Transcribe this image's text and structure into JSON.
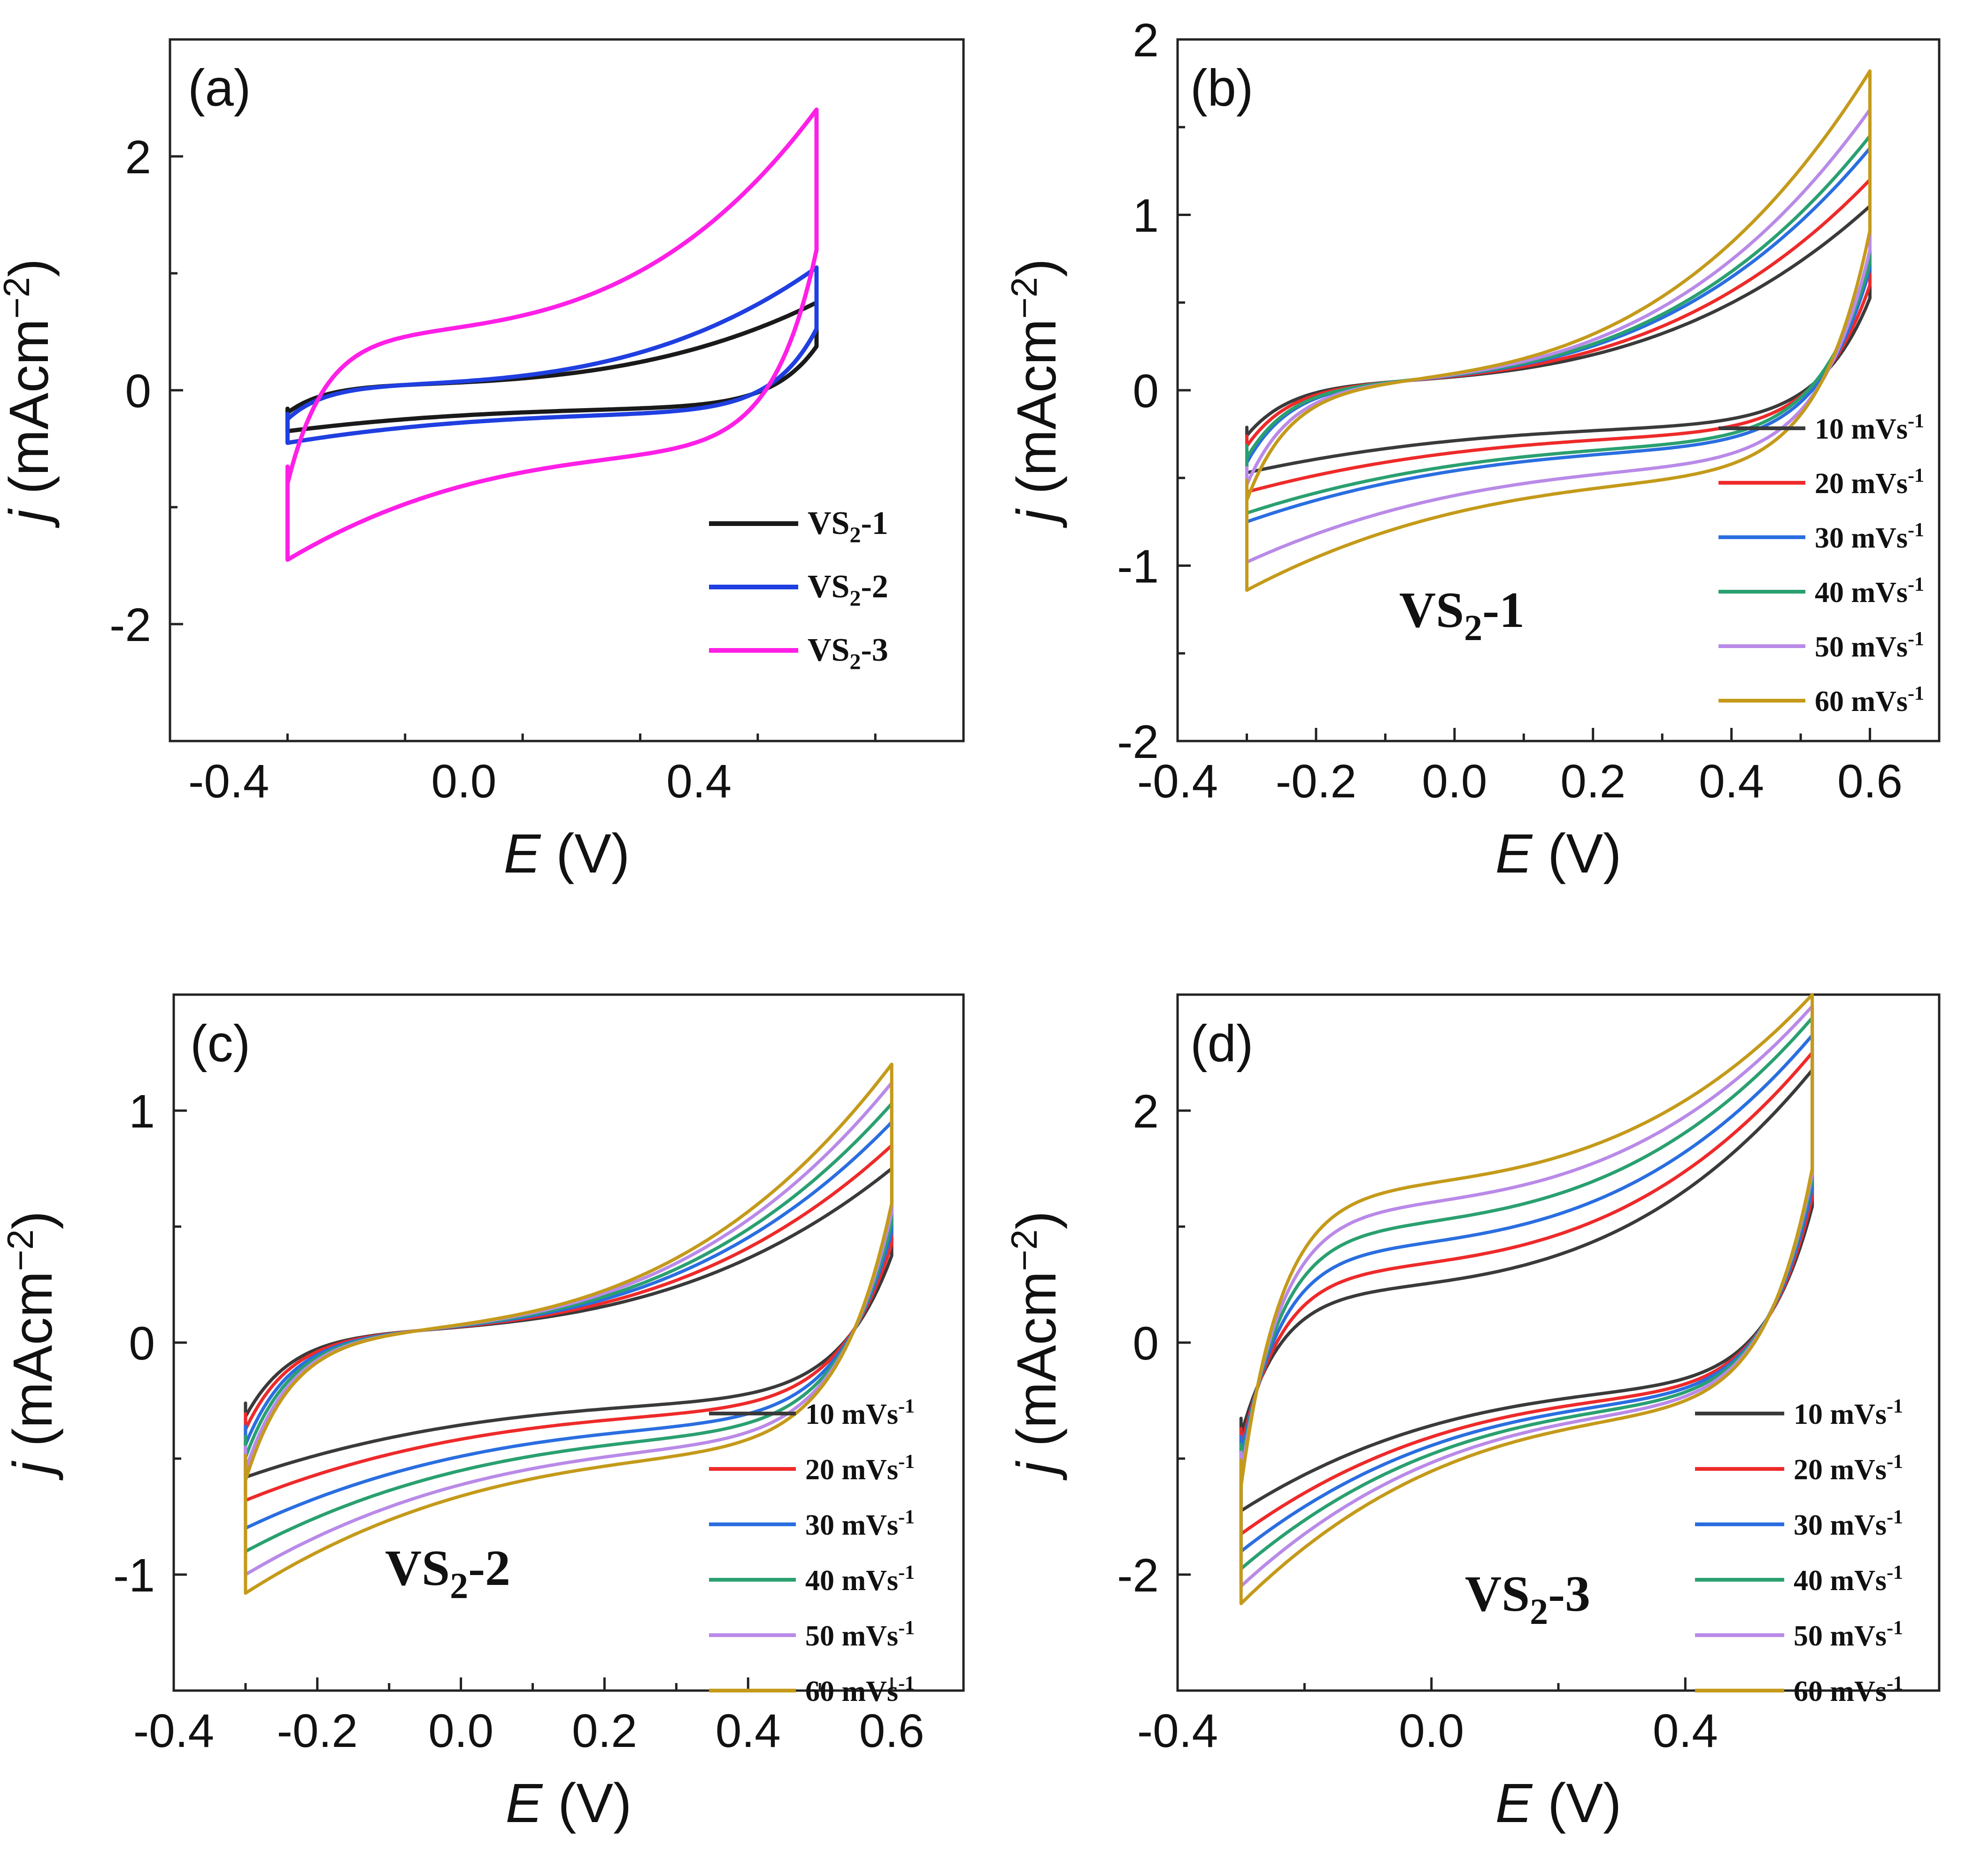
{
  "chart_data": [
    {
      "panel": "(a)",
      "type": "line",
      "title": "",
      "xlabel": "E (V)",
      "xlabel_italic": "E",
      "xlabel_rest": " (V)",
      "ylabel_italic": "j",
      "ylabel_rest": " (mAcm",
      "ylabel_exp": "−2",
      "ylabel_close": ")",
      "xlim": [
        -0.5,
        0.85
      ],
      "ylim": [
        -3,
        3
      ],
      "xticks": [
        -0.4,
        0.0,
        0.4
      ],
      "xtick_labels": [
        "-0.4",
        "0.0",
        "0.4"
      ],
      "yticks": [
        -2,
        0,
        2
      ],
      "ytick_labels": [
        "-2",
        "0",
        "2"
      ],
      "legend_position": "bottom-right",
      "sample_label": null,
      "series": [
        {
          "name": "VS2-1",
          "base": "VS",
          "sub": "2",
          "suffix": "-1",
          "color": "#1a1a1a",
          "E_min": -0.3,
          "E_max": 0.6,
          "j_min": -0.35,
          "j_max": 0.75
        },
        {
          "name": "VS2-2",
          "base": "VS",
          "sub": "2",
          "suffix": "-2",
          "color": "#1f3fe0",
          "E_min": -0.3,
          "E_max": 0.6,
          "j_min": -0.45,
          "j_max": 1.05
        },
        {
          "name": "VS2-3",
          "base": "VS",
          "sub": "2",
          "suffix": "-3",
          "color": "#ff1fe6",
          "E_min": -0.3,
          "E_max": 0.6,
          "j_min": -1.45,
          "j_max": 2.4
        }
      ]
    },
    {
      "panel": "(b)",
      "type": "line",
      "title": "",
      "xlabel": "E (V)",
      "xlabel_italic": "E",
      "xlabel_rest": " (V)",
      "ylabel_italic": "j",
      "ylabel_rest": " (mAcm",
      "ylabel_exp": "−2",
      "ylabel_close": ")",
      "xlim": [
        -0.4,
        0.7
      ],
      "ylim": [
        -2,
        2
      ],
      "xticks": [
        -0.4,
        -0.2,
        0.0,
        0.2,
        0.4,
        0.6
      ],
      "xtick_labels": [
        "-0.4",
        "-0.2",
        "0.0",
        "0.2",
        "0.4",
        "0.6"
      ],
      "yticks": [
        -2,
        -1,
        0,
        1,
        2
      ],
      "ytick_labels": [
        "-2",
        "-1",
        "0",
        "1",
        "2"
      ],
      "legend_position": "right",
      "sample_label": {
        "base": "VS",
        "sub": "2",
        "suffix": "-1"
      },
      "series": [
        {
          "name": "10 mVs-1",
          "label": "10 mVs",
          "exp": "-1",
          "color": "#3a3a3a",
          "E_min": -0.3,
          "E_max": 0.6,
          "j_min": -0.47,
          "j_max": 1.05
        },
        {
          "name": "20 mVs-1",
          "label": "20 mVs",
          "exp": "-1",
          "color": "#ee2a2a",
          "E_min": -0.3,
          "E_max": 0.6,
          "j_min": -0.58,
          "j_max": 1.2
        },
        {
          "name": "30 mVs-1",
          "label": "30 mVs",
          "exp": "-1",
          "color": "#2a6ee0",
          "E_min": -0.3,
          "E_max": 0.6,
          "j_min": -0.75,
          "j_max": 1.38
        },
        {
          "name": "40 mVs-1",
          "label": "40 mVs",
          "exp": "-1",
          "color": "#2aa070",
          "E_min": -0.3,
          "E_max": 0.6,
          "j_min": -0.7,
          "j_max": 1.45
        },
        {
          "name": "50 mVs-1",
          "label": "50 mVs",
          "exp": "-1",
          "color": "#b98ae8",
          "E_min": -0.3,
          "E_max": 0.6,
          "j_min": -0.98,
          "j_max": 1.6
        },
        {
          "name": "60 mVs-1",
          "label": "60 mVs",
          "exp": "-1",
          "color": "#c49a1a",
          "E_min": -0.3,
          "E_max": 0.6,
          "j_min": -1.14,
          "j_max": 1.82
        }
      ]
    },
    {
      "panel": "(c)",
      "type": "line",
      "title": "",
      "xlabel": "E (V)",
      "xlabel_italic": "E",
      "xlabel_rest": " (V)",
      "ylabel_italic": "j",
      "ylabel_rest": " (mAcm",
      "ylabel_exp": "−2",
      "ylabel_close": ")",
      "xlim": [
        -0.4,
        0.7
      ],
      "ylim": [
        -1.5,
        1.5
      ],
      "xticks": [
        -0.4,
        -0.2,
        0.0,
        0.2,
        0.4,
        0.6
      ],
      "xtick_labels": [
        "-0.4",
        "-0.2",
        "0.0",
        "0.2",
        "0.4",
        "0.6"
      ],
      "yticks": [
        -1,
        0,
        1
      ],
      "ytick_labels": [
        "-1",
        "0",
        "1"
      ],
      "legend_position": "bottom-right",
      "sample_label": {
        "base": "VS",
        "sub": "2",
        "suffix": "-2"
      },
      "series": [
        {
          "name": "10 mVs-1",
          "label": "10 mVs",
          "exp": "-1",
          "color": "#3a3a3a",
          "E_min": -0.3,
          "E_max": 0.6,
          "j_min": -0.58,
          "j_max": 0.75
        },
        {
          "name": "20 mVs-1",
          "label": "20 mVs",
          "exp": "-1",
          "color": "#ee2a2a",
          "E_min": -0.3,
          "E_max": 0.6,
          "j_min": -0.68,
          "j_max": 0.85
        },
        {
          "name": "30 mVs-1",
          "label": "30 mVs",
          "exp": "-1",
          "color": "#2a6ee0",
          "E_min": -0.3,
          "E_max": 0.6,
          "j_min": -0.8,
          "j_max": 0.95
        },
        {
          "name": "40 mVs-1",
          "label": "40 mVs",
          "exp": "-1",
          "color": "#2aa070",
          "E_min": -0.3,
          "E_max": 0.6,
          "j_min": -0.9,
          "j_max": 1.03
        },
        {
          "name": "50 mVs-1",
          "label": "50 mVs",
          "exp": "-1",
          "color": "#b98ae8",
          "E_min": -0.3,
          "E_max": 0.6,
          "j_min": -1.0,
          "j_max": 1.12
        },
        {
          "name": "60 mVs-1",
          "label": "60 mVs",
          "exp": "-1",
          "color": "#c49a1a",
          "E_min": -0.3,
          "E_max": 0.6,
          "j_min": -1.08,
          "j_max": 1.2
        }
      ]
    },
    {
      "panel": "(d)",
      "type": "line",
      "title": "",
      "xlabel": "E (V)",
      "xlabel_italic": "E",
      "xlabel_rest": " (V)",
      "ylabel_italic": "j",
      "ylabel_rest": " (mAcm",
      "ylabel_exp": "−2",
      "ylabel_close": ")",
      "xlim": [
        -0.4,
        0.8
      ],
      "ylim": [
        -3,
        3
      ],
      "xticks": [
        -0.4,
        0.0,
        0.4
      ],
      "xtick_labels": [
        "-0.4",
        "0.0",
        "0.4"
      ],
      "yticks": [
        -2,
        0,
        2
      ],
      "ytick_labels": [
        "-2",
        "0",
        "2"
      ],
      "legend_position": "bottom-right",
      "sample_label": {
        "base": "VS",
        "sub": "2",
        "suffix": "-3"
      },
      "series": [
        {
          "name": "10 mVs-1",
          "label": "10 mVs",
          "exp": "-1",
          "color": "#3a3a3a",
          "E_min": -0.3,
          "E_max": 0.6,
          "j_min": -1.45,
          "j_max": 2.35
        },
        {
          "name": "20 mVs-1",
          "label": "20 mVs",
          "exp": "-1",
          "color": "#ee2a2a",
          "E_min": -0.3,
          "E_max": 0.6,
          "j_min": -1.65,
          "j_max": 2.5
        },
        {
          "name": "30 mVs-1",
          "label": "30 mVs",
          "exp": "-1",
          "color": "#2a6ee0",
          "E_min": -0.3,
          "E_max": 0.6,
          "j_min": -1.8,
          "j_max": 2.65
        },
        {
          "name": "40 mVs-1",
          "label": "40 mVs",
          "exp": "-1",
          "color": "#2aa070",
          "E_min": -0.3,
          "E_max": 0.6,
          "j_min": -1.95,
          "j_max": 2.8
        },
        {
          "name": "50 mVs-1",
          "label": "50 mVs",
          "exp": "-1",
          "color": "#b98ae8",
          "E_min": -0.3,
          "E_max": 0.6,
          "j_min": -2.1,
          "j_max": 2.9
        },
        {
          "name": "60 mVs-1",
          "label": "60 mVs",
          "exp": "-1",
          "color": "#c49a1a",
          "E_min": -0.3,
          "E_max": 0.6,
          "j_min": -2.25,
          "j_max": 3.0
        }
      ]
    }
  ]
}
